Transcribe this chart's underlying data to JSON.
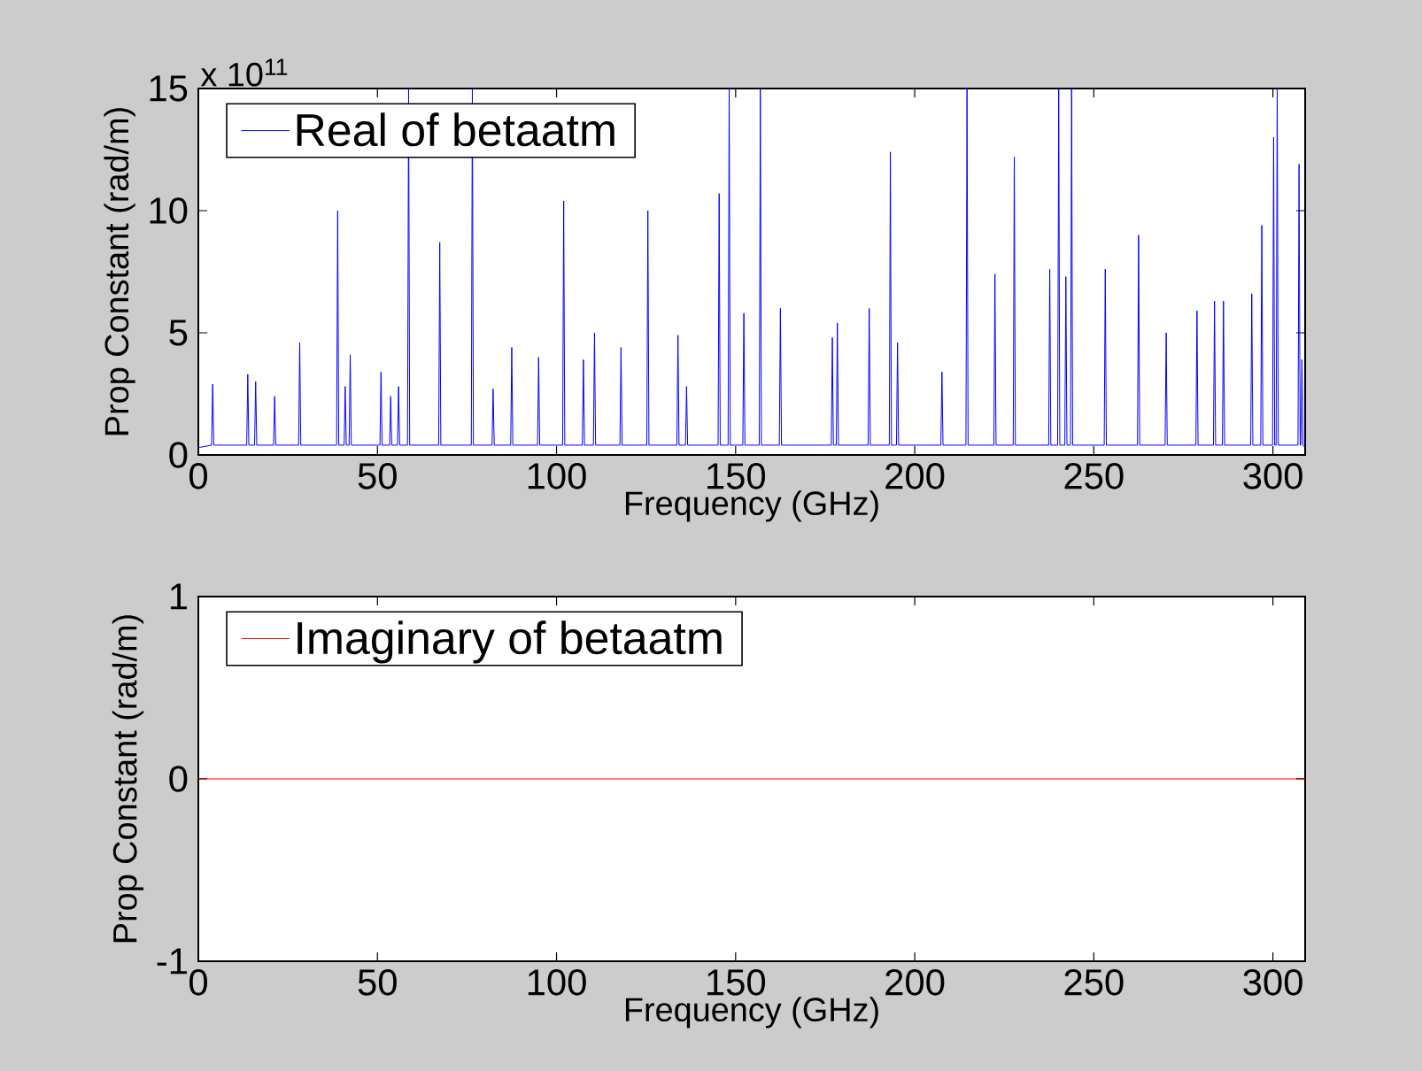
{
  "chart_data": [
    {
      "type": "line",
      "xlabel": "Frequency (GHz)",
      "ylabel": "Prop Constant (rad/m)",
      "xlim": [
        0,
        309
      ],
      "xticks": [
        0,
        50,
        100,
        150,
        200,
        250,
        300
      ],
      "ylim": [
        0,
        15
      ],
      "yticks": [
        0,
        5,
        10,
        15
      ],
      "legend": "top left",
      "annotations": [
        "x 10$^{11}$"
      ],
      "series": [
        {
          "name": "Real of betaatm",
          "color": "#0000ff",
          "x": [
            0,
            3.7,
            4,
            4.3,
            13.5,
            13.8,
            14.1,
            15.7,
            16,
            16.3,
            21,
            21.3,
            21.6,
            28,
            28.3,
            28.6,
            38.6,
            38.9,
            39.2,
            40.7,
            41,
            41.3,
            42.1,
            42.4,
            42.7,
            50.7,
            51,
            51.3,
            53.4,
            53.7,
            54,
            55.6,
            55.9,
            56.2,
            58.4,
            58.7,
            59,
            67.1,
            67.4,
            67.7,
            76.2,
            76.5,
            76.8,
            82,
            82.3,
            82.6,
            87.2,
            87.5,
            87.8,
            94.7,
            95,
            95.3,
            101.7,
            102,
            102.3,
            107.2,
            107.5,
            107.8,
            110.3,
            110.6,
            110.9,
            117.7,
            118,
            118.3,
            125.2,
            125.5,
            125.8,
            133.6,
            133.9,
            134.2,
            136,
            136.3,
            136.6,
            145.1,
            145.4,
            145.7,
            147.9,
            148.2,
            148.5,
            152,
            152.3,
            152.6,
            156.6,
            156.9,
            157.2,
            162.2,
            162.5,
            162.8,
            176.7,
            177,
            177.3,
            178.1,
            178.4,
            178.7,
            187,
            187.3,
            187.6,
            192.9,
            193.2,
            193.5,
            194.9,
            195.2,
            195.5,
            207.3,
            207.6,
            207.9,
            214.3,
            214.6,
            214.9,
            222.1,
            222.4,
            222.7,
            227.5,
            227.8,
            228.1,
            237.4,
            237.7,
            238,
            239.9,
            240.2,
            240.5,
            241.9,
            242.2,
            242.5,
            243.5,
            243.8,
            244.1,
            252.9,
            253.2,
            253.5,
            262.2,
            262.5,
            262.8,
            269.9,
            270.2,
            270.5,
            278.5,
            278.8,
            279.1,
            283.4,
            283.7,
            284,
            285.9,
            286.2,
            286.5,
            293.8,
            294.1,
            294.4,
            296.6,
            296.9,
            297.2,
            299.9,
            300.2,
            300.5,
            300.9,
            301.2,
            301.5,
            307,
            307.3,
            307.6,
            307.8,
            308.1,
            308.4,
            309
          ],
          "values": [
            0.3,
            0.4,
            2.9,
            0.4,
            0.4,
            3.3,
            0.4,
            0.4,
            3.0,
            0.4,
            0.4,
            2.4,
            0.4,
            0.4,
            4.6,
            0.4,
            0.4,
            10,
            0.4,
            0.4,
            2.8,
            0.4,
            0.4,
            4.1,
            0.4,
            0.4,
            3.4,
            0.4,
            0.4,
            2.4,
            0.4,
            0.4,
            2.8,
            0.4,
            0.4,
            15,
            0.4,
            0.4,
            8.7,
            0.4,
            0.4,
            15,
            0.4,
            0.4,
            2.7,
            0.4,
            0.4,
            4.4,
            0.4,
            0.4,
            4.0,
            0.4,
            0.4,
            10.4,
            0.4,
            0.4,
            3.9,
            0.4,
            0.4,
            5.0,
            0.4,
            0.4,
            4.4,
            0.4,
            0.4,
            10.0,
            0.4,
            0.4,
            4.9,
            0.4,
            0.4,
            2.8,
            0.4,
            0.4,
            10.7,
            0.4,
            0.4,
            15,
            0.4,
            0.4,
            5.8,
            0.4,
            0.4,
            15,
            0.4,
            0.4,
            6.0,
            0.4,
            0.4,
            4.8,
            0.4,
            0.4,
            5.4,
            0.4,
            0.4,
            6.0,
            0.4,
            0.4,
            12.4,
            0.4,
            0.4,
            4.6,
            0.4,
            0.4,
            3.4,
            0.4,
            0.4,
            15,
            0.4,
            0.4,
            7.4,
            0.4,
            0.4,
            12.2,
            0.4,
            0.4,
            7.6,
            0.4,
            0.4,
            15,
            0.4,
            0.4,
            7.3,
            0.4,
            0.4,
            15,
            0.4,
            0.4,
            7.6,
            0.4,
            0.4,
            9.0,
            0.4,
            0.4,
            5.0,
            0.4,
            0.4,
            5.9,
            0.4,
            0.4,
            6.3,
            0.4,
            0.4,
            6.3,
            0.4,
            0.4,
            6.6,
            0.4,
            0.4,
            9.4,
            0.4,
            0.4,
            13.0,
            0.4,
            0.4,
            15,
            0.4,
            0.4,
            11.9,
            0.4,
            0.4,
            3.9,
            0.4,
            0.3
          ]
        }
      ]
    },
    {
      "type": "line",
      "xlabel": "Frequency (GHz)",
      "ylabel": "Prop Constant (rad/m)",
      "xlim": [
        0,
        309
      ],
      "xticks": [
        0,
        50,
        100,
        150,
        200,
        250,
        300
      ],
      "ylim": [
        -1,
        1
      ],
      "yticks": [
        -1,
        0,
        1
      ],
      "legend": "top left",
      "series": [
        {
          "name": "Imaginary of betaatm",
          "color": "#ff0000",
          "x": [
            0,
            309
          ],
          "values": [
            0,
            0
          ]
        }
      ]
    }
  ]
}
